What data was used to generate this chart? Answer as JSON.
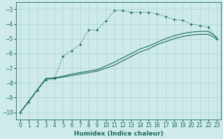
{
  "xlabel": "Humidex (Indice chaleur)",
  "xlim": [
    -0.5,
    23.5
  ],
  "ylim": [
    -10.5,
    -2.5
  ],
  "yticks": [
    -10,
    -9,
    -8,
    -7,
    -6,
    -5,
    -4,
    -3
  ],
  "xticks": [
    0,
    1,
    2,
    3,
    4,
    5,
    6,
    7,
    8,
    9,
    10,
    11,
    12,
    13,
    14,
    15,
    16,
    17,
    18,
    19,
    20,
    21,
    22,
    23
  ],
  "bg_color": "#ceeaea",
  "grid_color": "#afd4d4",
  "line_color": "#1a6b5a",
  "line1_x": [
    0,
    1,
    2,
    3,
    4,
    5,
    6,
    7,
    8,
    9,
    10,
    11,
    12,
    13,
    14,
    15,
    16,
    17,
    18,
    19,
    20,
    21,
    22,
    23
  ],
  "line1_y": [
    -10.0,
    -9.3,
    -8.5,
    -7.8,
    -7.7,
    -6.2,
    -5.8,
    -5.4,
    -4.4,
    -4.4,
    -3.8,
    -3.1,
    -3.1,
    -3.2,
    -3.2,
    -3.2,
    -3.3,
    -3.5,
    -3.7,
    -3.75,
    -4.0,
    -4.1,
    -4.2,
    -5.0
  ],
  "line2_x": [
    0,
    3,
    4,
    5,
    6,
    7,
    8,
    9,
    10,
    11,
    12,
    13,
    14,
    15,
    16,
    17,
    18,
    19,
    20,
    21,
    22,
    23
  ],
  "line2_y": [
    -10.0,
    -7.7,
    -7.7,
    -7.6,
    -7.5,
    -7.4,
    -7.3,
    -7.2,
    -7.0,
    -6.8,
    -6.5,
    -6.2,
    -5.9,
    -5.7,
    -5.4,
    -5.2,
    -5.0,
    -4.85,
    -4.75,
    -4.7,
    -4.7,
    -5.0
  ],
  "line3_x": [
    0,
    3,
    4,
    5,
    6,
    7,
    8,
    9,
    10,
    11,
    12,
    13,
    14,
    15,
    16,
    17,
    18,
    19,
    20,
    21,
    22,
    23
  ],
  "line3_y": [
    -10.0,
    -7.7,
    -7.65,
    -7.55,
    -7.4,
    -7.3,
    -7.2,
    -7.1,
    -6.85,
    -6.6,
    -6.3,
    -6.0,
    -5.7,
    -5.5,
    -5.25,
    -5.0,
    -4.8,
    -4.65,
    -4.55,
    -4.5,
    -4.5,
    -4.9
  ]
}
